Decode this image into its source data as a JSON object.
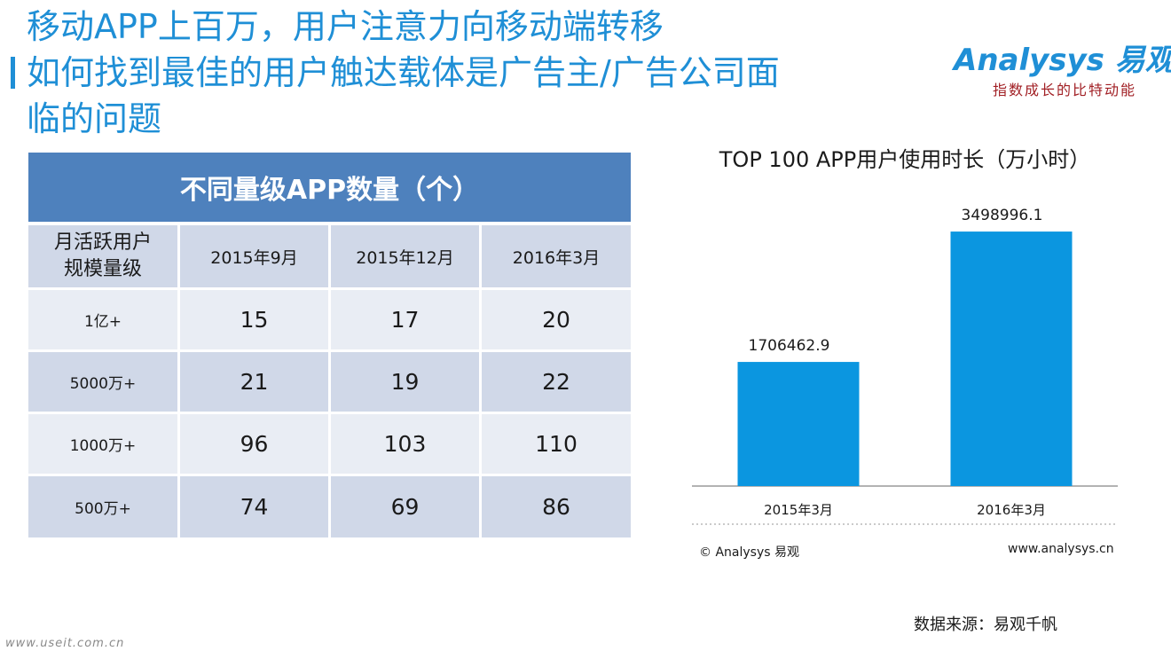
{
  "title": {
    "line1": "移动APP上百万，用户注意力向移动端转移",
    "line2": "如何找到最佳的用户触达载体是广告主/广告公司面",
    "line3": "临的问题"
  },
  "logo": {
    "brand": "Analysys 易观",
    "tagline": "指数成长的比特动能"
  },
  "table": {
    "title": "不同量级APP数量（个）",
    "header_label_line1": "月活跃用户",
    "header_label_line2": "规模量级",
    "columns": [
      "2015年9月",
      "2015年12月",
      "2016年3月"
    ],
    "rows": [
      {
        "label": "1亿+",
        "values": [
          "15",
          "17",
          "20"
        ]
      },
      {
        "label": "5000万+",
        "values": [
          "21",
          "19",
          "22"
        ]
      },
      {
        "label": "1000万+",
        "values": [
          "96",
          "103",
          "110"
        ]
      },
      {
        "label": "500万+",
        "values": [
          "74",
          "69",
          "86"
        ]
      }
    ]
  },
  "chart_data": {
    "type": "bar",
    "title": "TOP 100 APP用户使用时长（万小时）",
    "categories": [
      "2015年3月",
      "2016年3月"
    ],
    "values": [
      1706462.9,
      3498996.1
    ],
    "value_labels": [
      "1706462.9",
      "3498996.1"
    ],
    "ylim": [
      0,
      4000000
    ],
    "xlabel": "",
    "ylabel": "",
    "grid": false,
    "colors": {
      "bar": "#0b96e0"
    }
  },
  "footer": {
    "copyright": "© Analysys 易观",
    "website": "www.analysys.cn",
    "source": "数据来源：易观千帆",
    "watermark": "www.useit.com.cn"
  }
}
